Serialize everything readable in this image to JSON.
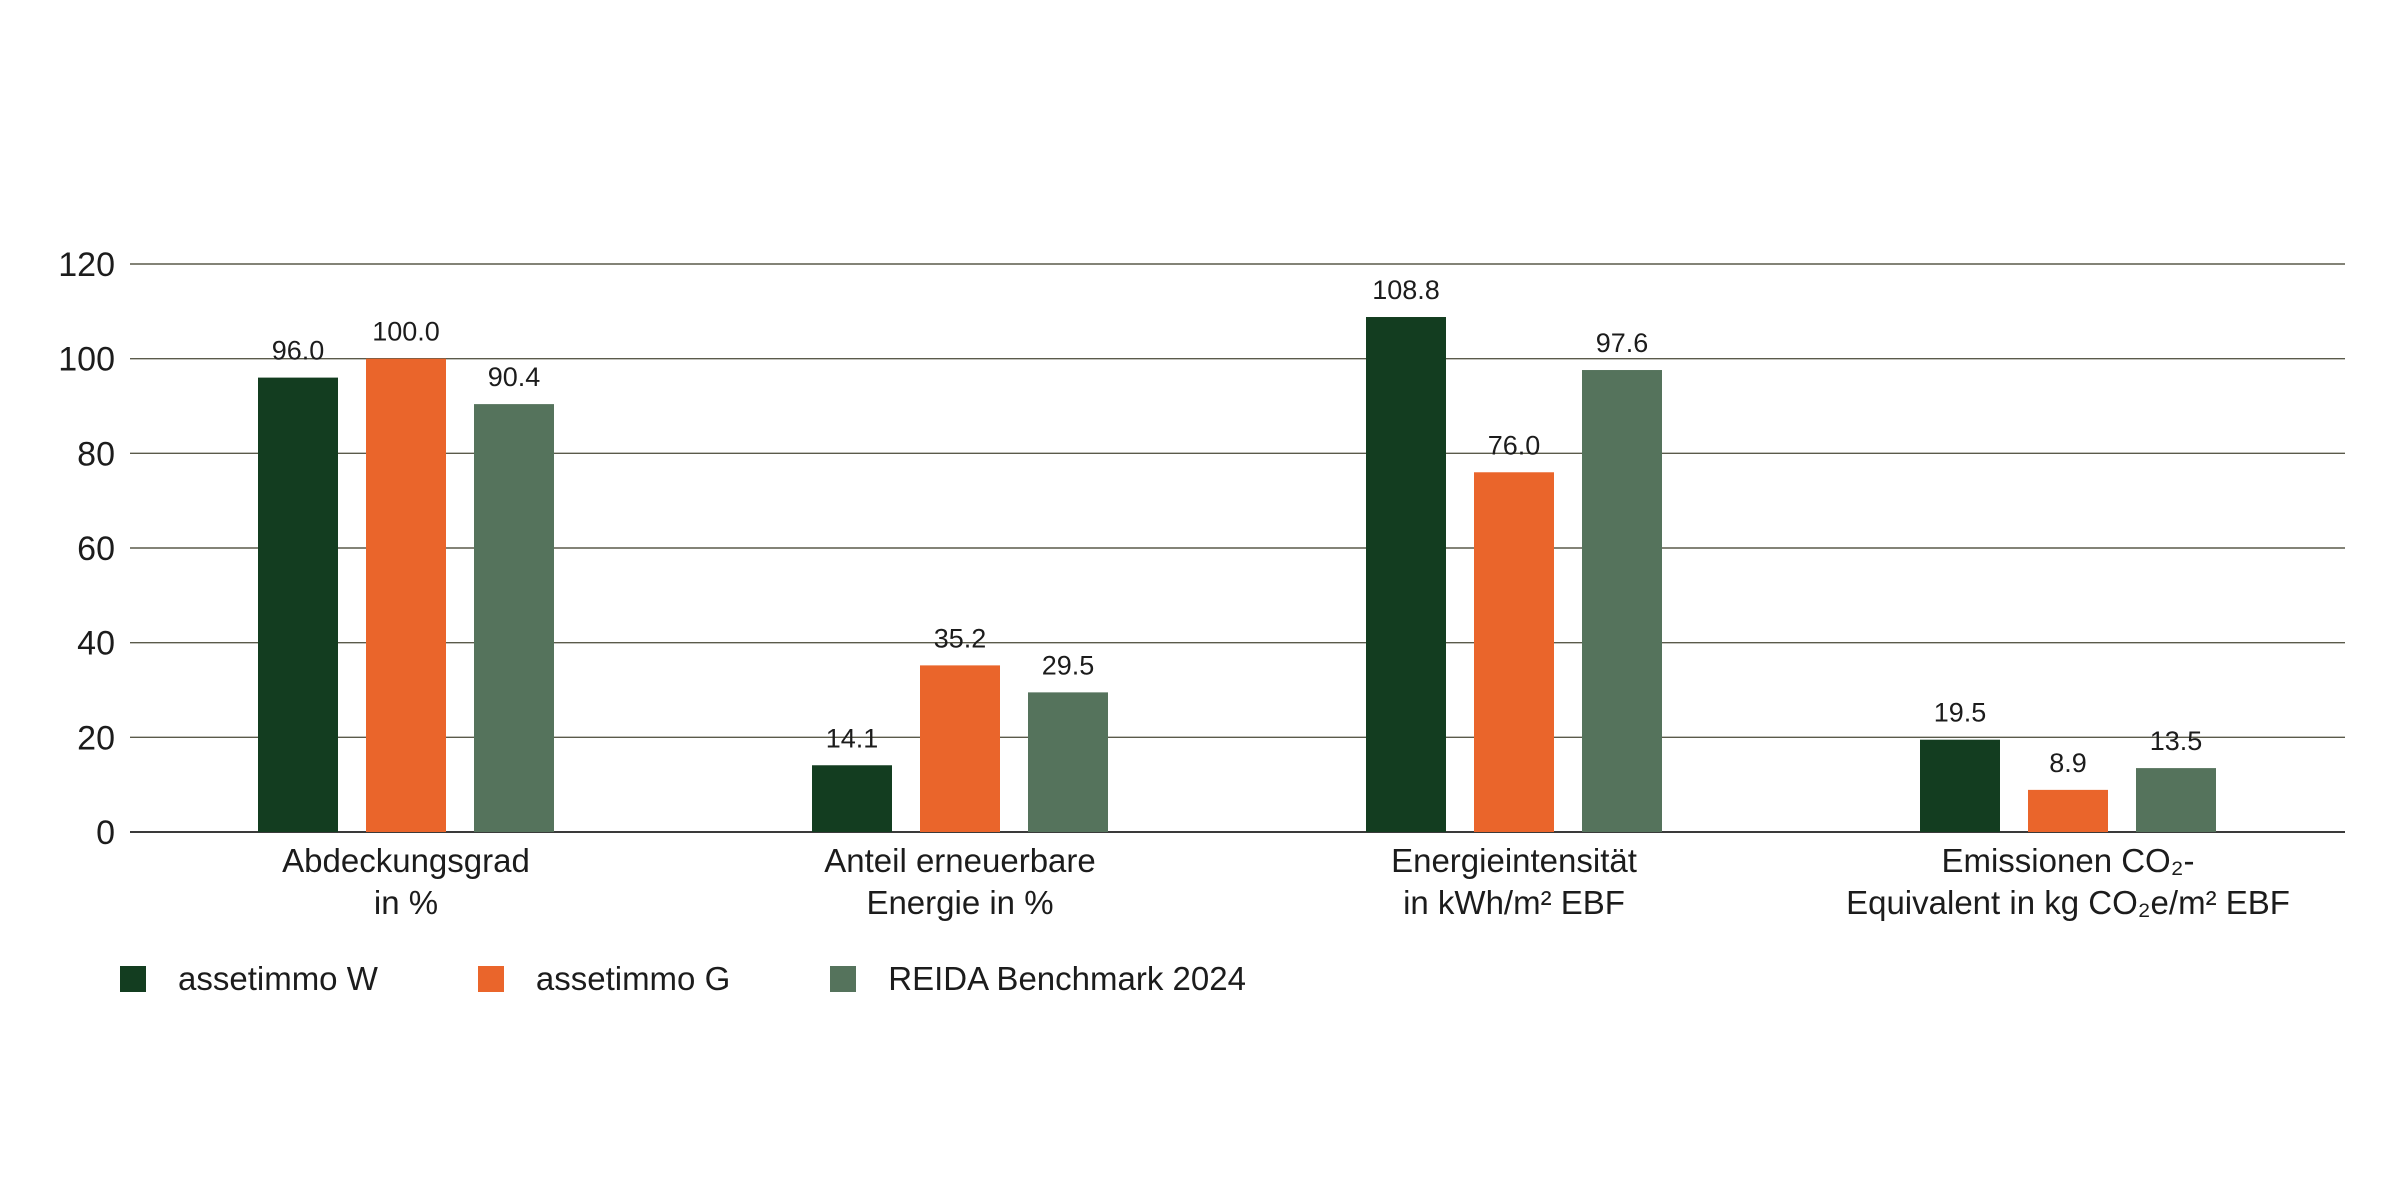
{
  "chart_data": {
    "type": "bar",
    "categories": [
      [
        "Abdeckungsgrad",
        "in %"
      ],
      [
        "Anteil erneuerbare",
        "Energie in %"
      ],
      [
        "Energieintensität",
        "in kWh/m² EBF"
      ],
      [
        "Emissionen CO₂-",
        "Equivalent in kg CO₂e/m² EBF"
      ]
    ],
    "series": [
      {
        "name": "assetimmo W",
        "color": "#133d20",
        "values": [
          96.0,
          14.1,
          108.8,
          19.5
        ],
        "labels": [
          "96.0",
          "14.1",
          "108.8",
          "19.5"
        ]
      },
      {
        "name": "assetimmo G",
        "color": "#ea652b",
        "values": [
          100.0,
          35.2,
          76.0,
          8.9
        ],
        "labels": [
          "100.0",
          "35.2",
          "76.0",
          "8.9"
        ]
      },
      {
        "name": "REIDA Benchmark 2024",
        "color": "#55735c",
        "values": [
          90.4,
          29.5,
          97.6,
          13.5
        ],
        "labels": [
          "90.4",
          "29.5",
          "97.6",
          "13.5"
        ]
      }
    ],
    "yticks": [
      "0",
      "20",
      "40",
      "60",
      "80",
      "100",
      "120"
    ],
    "ylim": [
      0,
      120
    ],
    "grid": true,
    "legend_position": "bottom-left"
  }
}
